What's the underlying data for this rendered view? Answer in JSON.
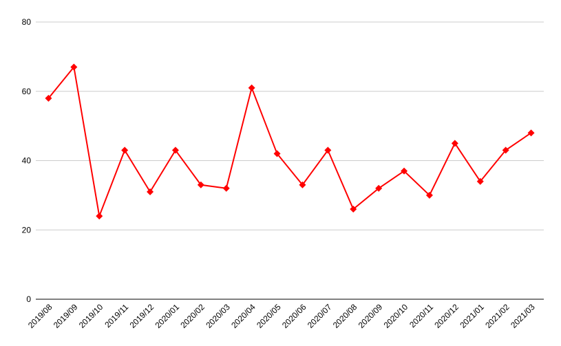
{
  "chart_data": {
    "type": "line",
    "categories": [
      "2019/08",
      "2019/09",
      "2019/10",
      "2019/11",
      "2019/12",
      "2020/01",
      "2020/02",
      "2020/03",
      "2020/04",
      "2020/05",
      "2020/06",
      "2020/07",
      "2020/08",
      "2020/09",
      "2020/10",
      "2020/11",
      "2020/12",
      "2021/01",
      "2021/02",
      "2021/03"
    ],
    "series": [
      {
        "color": "#ff0000",
        "values": [
          58,
          67,
          24,
          43,
          31,
          43,
          33,
          32,
          61,
          42,
          33,
          43,
          26,
          32,
          37,
          30,
          45,
          34,
          43,
          48
        ]
      }
    ],
    "ylim": [
      0,
      80
    ],
    "yticks": [
      0,
      20,
      40,
      60,
      80
    ],
    "grid": true
  }
}
